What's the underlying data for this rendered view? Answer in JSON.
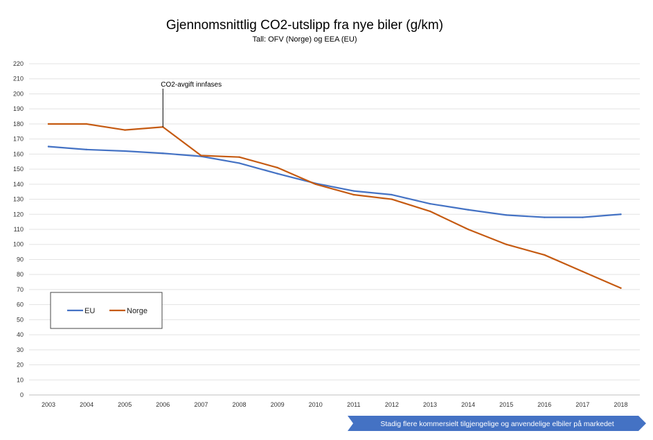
{
  "chart_data": {
    "type": "line",
    "title": "Gjennomsnittlig CO2-utslipp fra nye biler (g/km)",
    "subtitle": "Tall: OFV (Norge) og EEA (EU)",
    "xlabel": "",
    "ylabel": "",
    "categories": [
      "2003",
      "2004",
      "2005",
      "2006",
      "2007",
      "2008",
      "2009",
      "2010",
      "2011",
      "2012",
      "2013",
      "2014",
      "2015",
      "2016",
      "2017",
      "2018"
    ],
    "ylim": [
      0,
      220
    ],
    "ytick_step": 10,
    "grid": true,
    "legend_position": "bottom-left",
    "series": [
      {
        "name": "EU",
        "color": "#4472C4",
        "values": [
          165,
          163,
          162,
          160.5,
          158.5,
          154,
          147,
          140.5,
          135.5,
          133,
          127,
          123,
          119.5,
          118,
          118,
          120
        ]
      },
      {
        "name": "Norge",
        "color": "#C55A11",
        "values": [
          180,
          180,
          176,
          178,
          159,
          158,
          151,
          140,
          133,
          130,
          122,
          110,
          100,
          93,
          82,
          71
        ]
      }
    ],
    "annotations": [
      {
        "text": "CO2-avgift innfases",
        "x": "2006"
      }
    ],
    "banner": {
      "text": "Stadig flere kommersielt tilgjengelige og anvendelige elbiler på markedet",
      "color": "#4472C4"
    }
  }
}
